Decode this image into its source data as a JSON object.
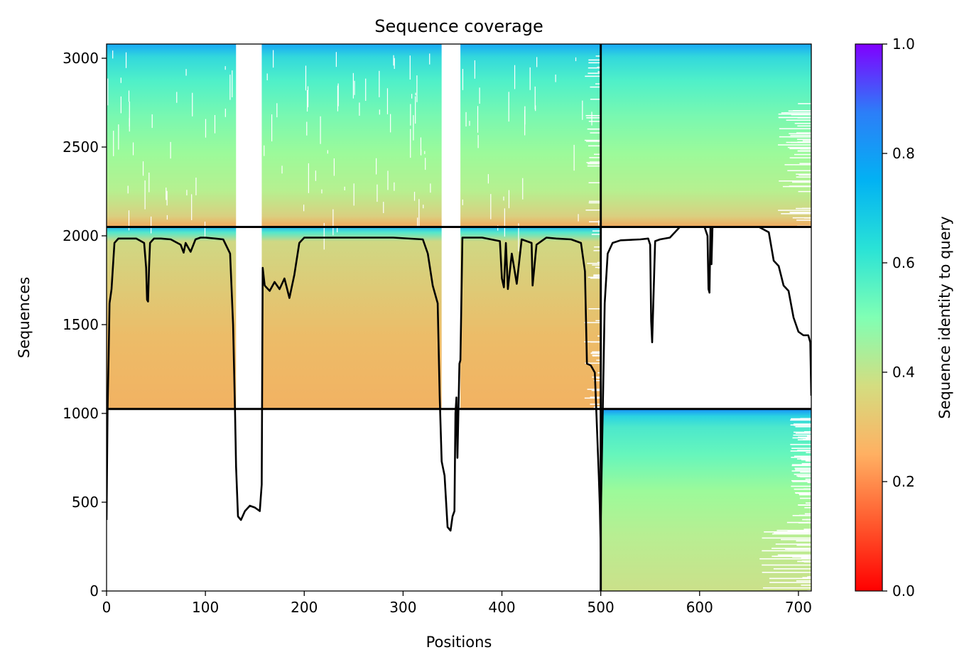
{
  "chart_data": {
    "type": "heatmap",
    "title": "Sequence coverage",
    "xlabel": "Positions",
    "ylabel": "Sequences",
    "colorbar_label": "Sequence identity to query",
    "colormap": "rainbow_r",
    "xlim": [
      0,
      713
    ],
    "ylim": [
      0,
      3080
    ],
    "x_ticks": [
      {
        "value": 0,
        "label": "0"
      },
      {
        "value": 100,
        "label": "100"
      },
      {
        "value": 200,
        "label": "200"
      },
      {
        "value": 300,
        "label": "300"
      },
      {
        "value": 400,
        "label": "400"
      },
      {
        "value": 500,
        "label": "500"
      },
      {
        "value": 600,
        "label": "600"
      },
      {
        "value": 700,
        "label": "700"
      }
    ],
    "y_ticks": [
      {
        "value": 0,
        "label": "0"
      },
      {
        "value": 500,
        "label": "500"
      },
      {
        "value": 1000,
        "label": "1000"
      },
      {
        "value": 1500,
        "label": "1500"
      },
      {
        "value": 2000,
        "label": "2000"
      },
      {
        "value": 2500,
        "label": "2500"
      },
      {
        "value": 3000,
        "label": "3000"
      }
    ],
    "colorbar_ticks": [
      {
        "value": 0.0,
        "label": "0.0"
      },
      {
        "value": 0.2,
        "label": "0.2"
      },
      {
        "value": 0.4,
        "label": "0.4"
      },
      {
        "value": 0.6,
        "label": "0.6"
      },
      {
        "value": 0.8,
        "label": "0.8"
      },
      {
        "value": 1.0,
        "label": "1.0"
      }
    ],
    "chain_boundary_x": 500,
    "row_boundaries_y": [
      1025,
      2050
    ],
    "blocks": [
      {
        "name": "paired-chain1",
        "x_range": [
          0,
          500
        ],
        "y_range": [
          2050,
          3080
        ],
        "identity_bottom": 0.25,
        "identity_top": 0.75
      },
      {
        "name": "paired-chain2",
        "x_range": [
          500,
          713
        ],
        "y_range": [
          2050,
          3080
        ],
        "identity_bottom": 0.25,
        "identity_top": 0.75
      },
      {
        "name": "unpaired-chain1",
        "x_range": [
          0,
          500
        ],
        "y_range": [
          1025,
          2050
        ],
        "identity_bottom": 0.25,
        "identity_top": 0.75
      },
      {
        "name": "unpaired-chain2",
        "x_range": [
          500,
          713
        ],
        "y_range": [
          0,
          1025
        ],
        "identity_bottom": 0.33,
        "identity_top": 0.75
      }
    ],
    "gaps_chain1": [
      {
        "x_range": [
          131,
          157
        ],
        "rows": "paired+unpaired"
      },
      {
        "x_range": [
          339,
          358
        ],
        "rows": "paired+unpaired"
      }
    ],
    "coverage_line_chain1": {
      "x": [
        0,
        1,
        2,
        3,
        5,
        8,
        12,
        20,
        30,
        38,
        40,
        41,
        42,
        43,
        44,
        48,
        55,
        65,
        75,
        78,
        80,
        85,
        90,
        95,
        100,
        110,
        118,
        125,
        128,
        130,
        131,
        133,
        136,
        140,
        145,
        150,
        155,
        157,
        158,
        160,
        165,
        170,
        175,
        180,
        185,
        190,
        195,
        200,
        210,
        230,
        260,
        290,
        320,
        325,
        330,
        335,
        337,
        339,
        342,
        345,
        348,
        350,
        352,
        353,
        354,
        355,
        357,
        358,
        360,
        362,
        365,
        380,
        398,
        400,
        402,
        404,
        406,
        410,
        415,
        420,
        430,
        431,
        435,
        445,
        455,
        470,
        480,
        484,
        486,
        490,
        494,
        496,
        498,
        499,
        500
      ],
      "y": [
        400,
        1020,
        1300,
        1620,
        1700,
        1960,
        1985,
        1985,
        1985,
        1960,
        1820,
        1640,
        1630,
        1820,
        1960,
        1985,
        1985,
        1980,
        1950,
        1905,
        1960,
        1910,
        1980,
        1990,
        1990,
        1985,
        1980,
        1900,
        1500,
        1000,
        700,
        420,
        400,
        450,
        480,
        470,
        450,
        600,
        1820,
        1720,
        1690,
        1740,
        1700,
        1760,
        1650,
        1780,
        1960,
        1990,
        1990,
        1990,
        1990,
        1990,
        1980,
        1900,
        1720,
        1620,
        1100,
        730,
        650,
        360,
        340,
        420,
        450,
        1000,
        1090,
        750,
        1280,
        1300,
        1990,
        1990,
        1990,
        1990,
        1970,
        1760,
        1710,
        1960,
        1700,
        1900,
        1730,
        1980,
        1960,
        1720,
        1950,
        1990,
        1985,
        1980,
        1960,
        1800,
        1280,
        1270,
        1230,
        940,
        650,
        480,
        220
      ],
      "color": "#000000"
    },
    "coverage_line_chain2": {
      "x": [
        500,
        502,
        504,
        507,
        512,
        520,
        540,
        548,
        550,
        551,
        552,
        555,
        560,
        570,
        580,
        590,
        600,
        605,
        608,
        609,
        610,
        611,
        612,
        613,
        620,
        640,
        660,
        670,
        675,
        680,
        685,
        690,
        695,
        700,
        705,
        710,
        712,
        713
      ],
      "y": [
        410,
        1000,
        1620,
        1900,
        1960,
        1975,
        1980,
        1985,
        1950,
        1520,
        1400,
        1970,
        1980,
        1990,
        2050,
        2050,
        2050,
        2050,
        2000,
        1700,
        1680,
        2050,
        1840,
        2050,
        2050,
        2050,
        2050,
        2020,
        1860,
        1830,
        1720,
        1690,
        1540,
        1460,
        1440,
        1440,
        1400,
        1100
      ],
      "color": "#000000"
    }
  }
}
